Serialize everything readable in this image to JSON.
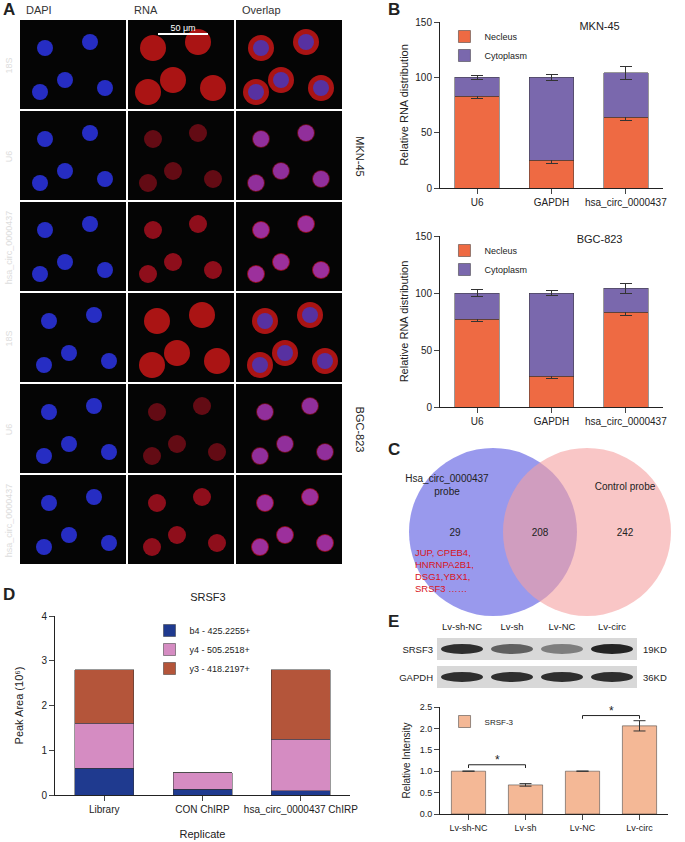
{
  "panels": {
    "A": {
      "letter": "A",
      "columns": [
        "DAPI",
        "RNA",
        "Overlap"
      ],
      "scale_bar": "50 μm",
      "groups": [
        {
          "cell_line": "MKN-45",
          "rows": [
            "18S",
            "U6",
            "hsa_circ_0000437"
          ]
        },
        {
          "cell_line": "BGC-823",
          "rows": [
            "18S",
            "U6",
            "hsa_circ_0000437"
          ]
        }
      ]
    },
    "B": {
      "letter": "B"
    },
    "C": {
      "letter": "C",
      "left": {
        "label": [
          "Hsa_circ_0000437",
          "probe"
        ],
        "count": 29,
        "genes": [
          "JUP, CPEB4,",
          "HNRNPA2B1,",
          "DSG1,YBX1,",
          "SRSF3 ……"
        ]
      },
      "overlap": 208,
      "right": {
        "label": [
          "Control probe"
        ],
        "count": 242
      }
    },
    "D": {
      "letter": "D"
    },
    "E": {
      "letter": "E",
      "blot": {
        "lanes": [
          "Lv-sh-NC",
          "Lv-sh",
          "Lv-NC",
          "Lv-circ"
        ],
        "bands": [
          {
            "name": "SRSF3",
            "size": "19KD"
          },
          {
            "name": "GAPDH",
            "size": "36KD"
          }
        ]
      }
    }
  },
  "chart_data": [
    {
      "type": "bar",
      "title": "MKN-45",
      "stacked": true,
      "grid": false,
      "legend": "top-left",
      "y_label": "Relative RNA distribution",
      "categories": [
        "U6",
        "GAPDH",
        "hsa_circ_0000437"
      ],
      "ylim": [
        0,
        150
      ],
      "yticks": [
        0,
        50,
        100,
        150
      ],
      "series": [
        {
          "name": "Necleus",
          "color": "#ee6a43",
          "values": [
            83,
            25,
            64
          ],
          "errors": [
            2,
            3,
            3
          ]
        },
        {
          "name": "Cytoplasm",
          "color": "#7a68ad",
          "values": [
            17,
            75,
            40
          ],
          "errors": [
            2,
            3,
            6
          ]
        }
      ]
    },
    {
      "type": "bar",
      "title": "BGC-823",
      "stacked": true,
      "grid": false,
      "legend": "top-left",
      "y_label": "Relative RNA distribution",
      "categories": [
        "U6",
        "GAPDH",
        "hsa_circ_0000437"
      ],
      "ylim": [
        0,
        150
      ],
      "yticks": [
        0,
        50,
        100,
        150
      ],
      "series": [
        {
          "name": "Necleus",
          "color": "#ee6a43",
          "values": [
            77,
            27,
            83
          ],
          "errors": [
            2,
            2,
            3
          ]
        },
        {
          "name": "Cytoplasm",
          "color": "#7a68ad",
          "values": [
            23,
            73,
            21
          ],
          "errors": [
            3,
            2,
            4
          ]
        }
      ]
    },
    {
      "type": "bar",
      "title": "SRSF3",
      "stacked": true,
      "grid": false,
      "legend": "top",
      "x_label": "Replicate",
      "y_label": "Peak Area (10⁶)",
      "categories": [
        "Library",
        "CON ChIRP",
        "hsa_circ_0000437 ChIRP"
      ],
      "ylim": [
        0,
        4
      ],
      "yticks": [
        0,
        1,
        2,
        3,
        4
      ],
      "series": [
        {
          "name": "b4 - 425.2255+",
          "color": "#1f3a8f",
          "values": [
            0.6,
            0.13,
            0.1
          ]
        },
        {
          "name": "y4 - 505.2518+",
          "color": "#d58cc2",
          "values": [
            1.0,
            0.37,
            1.15
          ]
        },
        {
          "name": "y3 - 418.2197+",
          "color": "#b4553a",
          "values": [
            1.2,
            0,
            1.55
          ]
        }
      ]
    },
    {
      "type": "bar",
      "grid": false,
      "legend": "top-left",
      "y_label": "Relative Intensity",
      "categories": [
        "Lv-sh-NC",
        "Lv-sh",
        "Lv-NC",
        "Lv-circ"
      ],
      "ylim": [
        0,
        2.5
      ],
      "yticks": [
        {
          "value": 0,
          "label": "0.0"
        },
        0.5,
        {
          "value": 1,
          "label": "1.0"
        },
        1.5,
        {
          "value": 2,
          "label": "2.0"
        },
        2.5
      ],
      "series": [
        {
          "name": "SRSF-3",
          "color": "#f4b896",
          "values": [
            1,
            0.68,
            1,
            2.06
          ],
          "errors": [
            0,
            0.03,
            0,
            0.12
          ]
        }
      ],
      "annotations": [
        {
          "from": "Lv-sh-NC",
          "to": "Lv-sh",
          "y": 1.15,
          "text": "*"
        },
        {
          "from": "Lv-NC",
          "to": "Lv-circ",
          "y": 2.3,
          "text": "*"
        }
      ]
    }
  ]
}
